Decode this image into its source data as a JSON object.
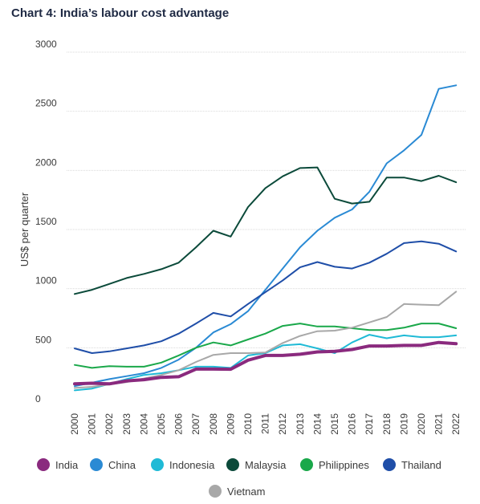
{
  "title": "Chart 4: India’s labour cost advantage",
  "chart_data": {
    "type": "line",
    "title": "Chart 4: India’s labour cost advantage",
    "xlabel": "",
    "ylabel": "US$ per quarter",
    "ylim": [
      0,
      3000
    ],
    "yticks": [
      0,
      500,
      1000,
      1500,
      2000,
      2500,
      3000
    ],
    "grid": true,
    "legend_position": "bottom",
    "x": [
      "2000",
      "2001",
      "2002",
      "2003",
      "2004",
      "2005",
      "2006",
      "2007",
      "2008",
      "2009",
      "2010",
      "2011",
      "2012",
      "2013",
      "2014",
      "2015",
      "2016",
      "2017",
      "2018",
      "2019",
      "2020",
      "2021",
      "2022"
    ],
    "series": [
      {
        "name": "India",
        "color": "#8a2a7e",
        "width": 4,
        "values": [
          195,
          200,
          195,
          220,
          230,
          250,
          255,
          320,
          320,
          318,
          395,
          435,
          435,
          445,
          465,
          470,
          485,
          515,
          515,
          520,
          520,
          545,
          535
        ]
      },
      {
        "name": "China",
        "color": "#2a8ad4",
        "width": 2,
        "values": [
          175,
          205,
          235,
          260,
          285,
          330,
          400,
          500,
          630,
          700,
          810,
          990,
          1170,
          1350,
          1490,
          1600,
          1670,
          1820,
          2060,
          2170,
          2300,
          2690,
          2720
        ]
      },
      {
        "name": "Indonesia",
        "color": "#1fbad6",
        "width": 2,
        "values": [
          140,
          155,
          195,
          235,
          270,
          285,
          310,
          340,
          340,
          330,
          435,
          455,
          520,
          530,
          495,
          455,
          545,
          610,
          580,
          605,
          590,
          590,
          605
        ]
      },
      {
        "name": "Malaysia",
        "color": "#0b4a3a",
        "width": 2,
        "values": [
          955,
          990,
          1040,
          1090,
          1125,
          1165,
          1220,
          1350,
          1490,
          1440,
          1690,
          1850,
          1950,
          2020,
          2025,
          1760,
          1720,
          1735,
          1940,
          1940,
          1910,
          1955,
          1900
        ]
      },
      {
        "name": "Philippines",
        "color": "#1aa84a",
        "width": 2,
        "values": [
          355,
          330,
          345,
          340,
          340,
          375,
          435,
          500,
          545,
          520,
          570,
          620,
          685,
          705,
          680,
          680,
          665,
          650,
          650,
          670,
          705,
          705,
          665
        ]
      },
      {
        "name": "Thailand",
        "color": "#1f4ea8",
        "width": 2,
        "values": [
          495,
          455,
          470,
          495,
          520,
          555,
          620,
          705,
          795,
          765,
          870,
          970,
          1070,
          1180,
          1225,
          1185,
          1170,
          1220,
          1295,
          1385,
          1400,
          1380,
          1315
        ]
      },
      {
        "name": "Vietnam",
        "color": "#a8a8a8",
        "width": 2,
        "values": [
          160,
          170,
          190,
          210,
          240,
          270,
          310,
          380,
          440,
          455,
          455,
          460,
          540,
          600,
          640,
          645,
          670,
          715,
          760,
          870,
          865,
          860,
          975
        ]
      }
    ]
  }
}
